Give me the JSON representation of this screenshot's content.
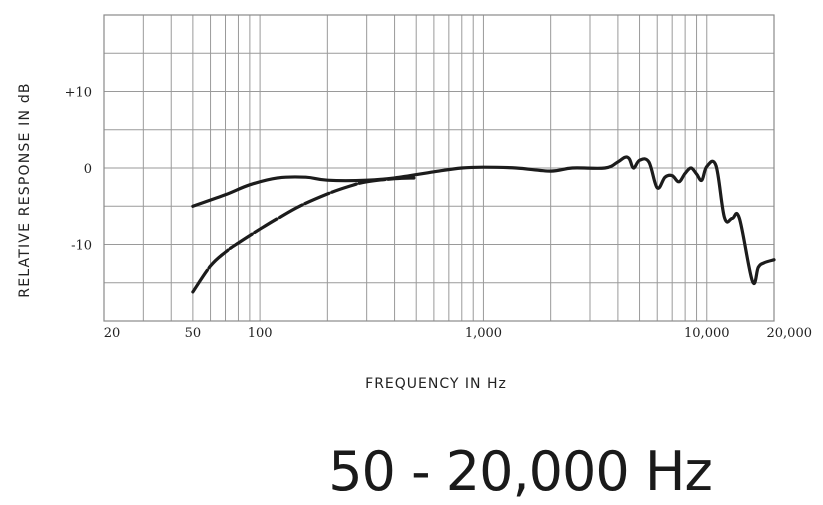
{
  "chart_data": {
    "type": "line",
    "title": "",
    "xlabel": "FREQUENCY IN Hz",
    "ylabel": "RELATIVE RESPONSE IN dB",
    "x_scale": "log",
    "xlim": [
      20,
      20000
    ],
    "ylim": [
      -20,
      20
    ],
    "grid": true,
    "legend": "none",
    "x_ticks": [
      {
        "value": 20,
        "label": "20"
      },
      {
        "value": 50,
        "label": "50"
      },
      {
        "value": 100,
        "label": "100"
      },
      {
        "value": 1000,
        "label": "1,000"
      },
      {
        "value": 10000,
        "label": "10,000"
      },
      {
        "value": 20000,
        "label": "20,000"
      }
    ],
    "y_ticks": [
      {
        "value": 10,
        "label": "+10"
      },
      {
        "value": 0,
        "label": "0"
      },
      {
        "value": -10,
        "label": "-10"
      }
    ],
    "series": [
      {
        "style": "solid",
        "x": [
          50,
          70,
          90,
          120,
          160,
          200,
          300,
          400,
          600,
          800,
          1000,
          1400,
          2000,
          2500,
          3500,
          4000,
          4300,
          4500,
          4700,
          5000,
          5500,
          6000,
          6500,
          7000,
          7500,
          8000,
          8500,
          9000,
          9500,
          10000,
          11000,
          12000,
          13000,
          14000,
          16000,
          17000,
          18000,
          20000
        ],
        "y": [
          -5,
          -3.5,
          -2.2,
          -1.3,
          -1.2,
          -1.6,
          -1.6,
          -1.3,
          -0.5,
          0,
          0.1,
          0,
          -0.4,
          0,
          0,
          0.8,
          1.4,
          1.2,
          0,
          1.0,
          0.8,
          -2.6,
          -1.2,
          -1.0,
          -1.8,
          -0.7,
          0,
          -0.8,
          -1.6,
          0.2,
          0.3,
          -6.5,
          -6.6,
          -6.6,
          -14.8,
          -13.0,
          -12.4,
          -12.0
        ]
      },
      {
        "style": "dashed",
        "x": [
          50,
          60,
          70,
          80,
          100,
          120,
          150,
          200,
          250,
          300,
          400,
          500
        ],
        "y": [
          -16.2,
          -12.8,
          -11.0,
          -9.8,
          -8.0,
          -6.6,
          -5.0,
          -3.4,
          -2.4,
          -1.8,
          -1.4,
          -1.3
        ]
      }
    ]
  },
  "range_title": "50 - 20,000 Hz"
}
